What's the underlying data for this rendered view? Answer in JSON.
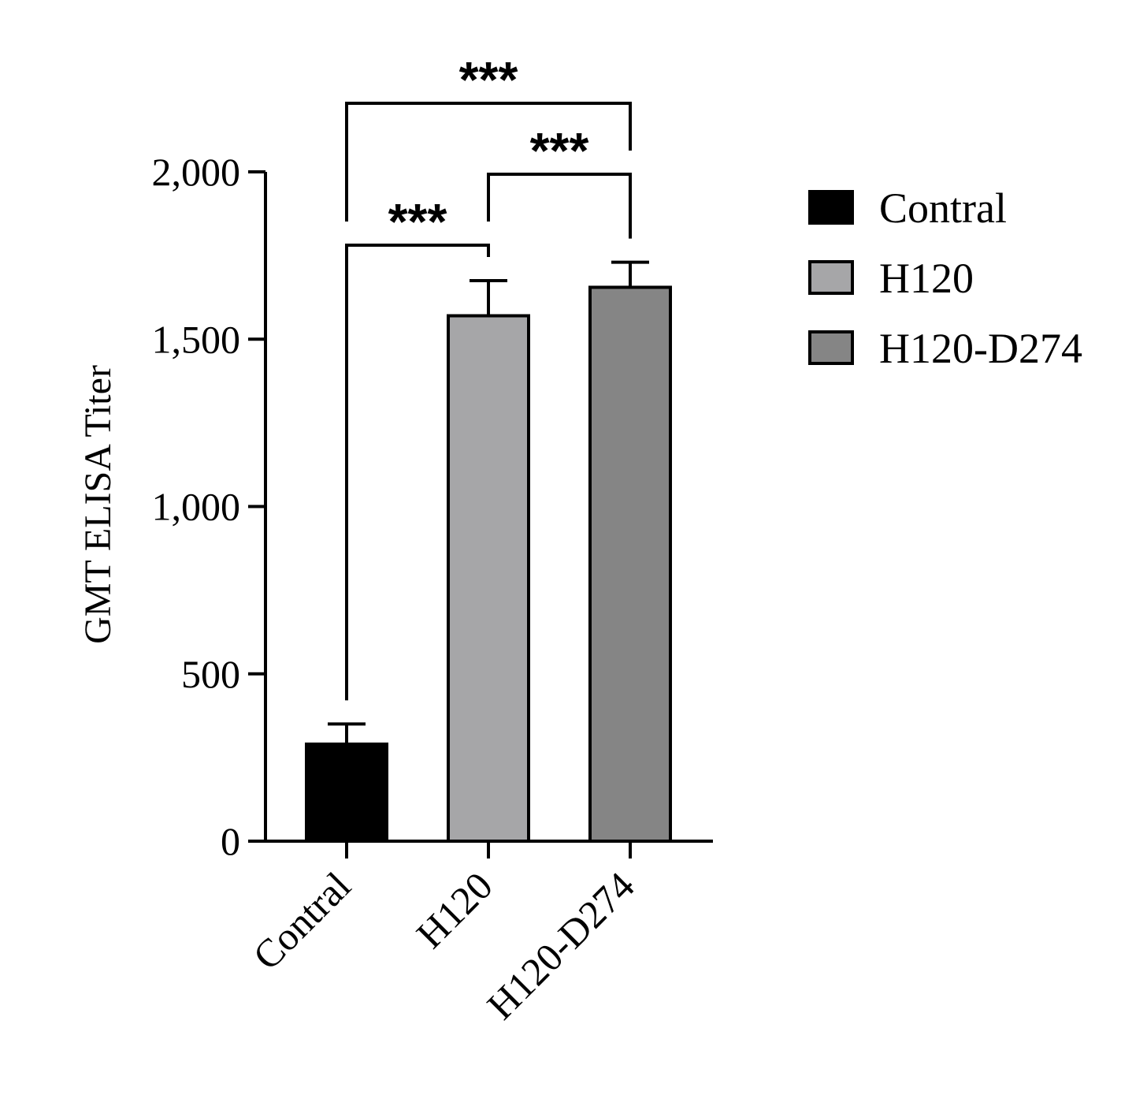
{
  "chart_data": {
    "type": "bar",
    "y_label": "GMT ELISA Titer",
    "categories": [
      "Contral",
      "H120",
      "H120-D274"
    ],
    "values": [
      290,
      1570,
      1655
    ],
    "errors": [
      60,
      105,
      75
    ],
    "colors": [
      "#000000",
      "#a6a6a8",
      "#858585"
    ],
    "legend_position": "right",
    "ylim": [
      0,
      2000
    ],
    "yticks": [
      0,
      500,
      {
        "value": 1000,
        "label": "1,000"
      },
      {
        "value": 1500,
        "label": "1,500"
      },
      {
        "value": 2000,
        "label": "2,000"
      }
    ],
    "significance": [
      {
        "from": 0,
        "to": 1,
        "label": "***"
      },
      {
        "from": 1,
        "to": 2,
        "label": "***"
      },
      {
        "from": 0,
        "to": 2,
        "label": "***"
      }
    ]
  }
}
